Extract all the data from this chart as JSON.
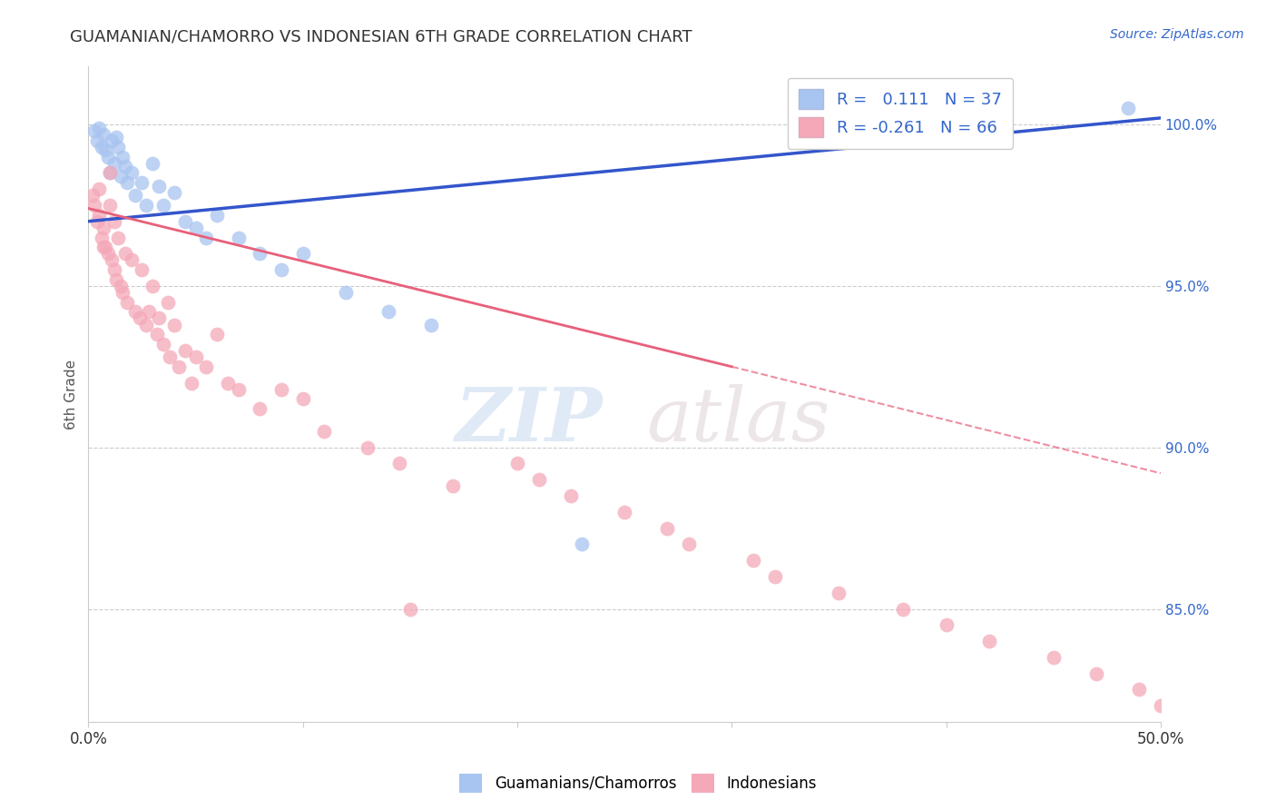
{
  "title": "GUAMANIAN/CHAMORRO VS INDONESIAN 6TH GRADE CORRELATION CHART",
  "source": "Source: ZipAtlas.com",
  "ylabel": "6th Grade",
  "yaxis_labels": [
    "100.0%",
    "95.0%",
    "90.0%",
    "85.0%"
  ],
  "yaxis_values": [
    1.0,
    0.95,
    0.9,
    0.85
  ],
  "xlim": [
    0.0,
    0.5
  ],
  "ylim": [
    0.815,
    1.018
  ],
  "legend_blue_r": "0.111",
  "legend_blue_n": "37",
  "legend_pink_r": "-0.261",
  "legend_pink_n": "66",
  "blue_color": "#a8c4f0",
  "pink_color": "#f4a8b8",
  "blue_line_color": "#3355cc",
  "pink_line_color": "#e8607a",
  "blue_line_x0": 0.0,
  "blue_line_y0": 0.97,
  "blue_line_x1": 0.5,
  "blue_line_y1": 1.002,
  "pink_line_solid_x0": 0.0,
  "pink_line_solid_y0": 0.974,
  "pink_line_solid_x1": 0.3,
  "pink_line_solid_y1": 0.925,
  "pink_line_dash_x0": 0.3,
  "pink_line_dash_y0": 0.925,
  "pink_line_dash_x1": 0.5,
  "pink_line_dash_y1": 0.892,
  "blue_scatter_x": [
    0.003,
    0.004,
    0.005,
    0.006,
    0.007,
    0.008,
    0.009,
    0.01,
    0.011,
    0.012,
    0.013,
    0.014,
    0.015,
    0.016,
    0.017,
    0.018,
    0.02,
    0.022,
    0.025,
    0.027,
    0.03,
    0.033,
    0.035,
    0.04,
    0.045,
    0.05,
    0.055,
    0.06,
    0.07,
    0.08,
    0.09,
    0.1,
    0.12,
    0.14,
    0.16,
    0.23,
    0.485
  ],
  "blue_scatter_y": [
    0.998,
    0.995,
    0.999,
    0.993,
    0.997,
    0.992,
    0.99,
    0.985,
    0.995,
    0.988,
    0.996,
    0.993,
    0.984,
    0.99,
    0.987,
    0.982,
    0.985,
    0.978,
    0.982,
    0.975,
    0.988,
    0.981,
    0.975,
    0.979,
    0.97,
    0.968,
    0.965,
    0.972,
    0.965,
    0.96,
    0.955,
    0.96,
    0.948,
    0.942,
    0.938,
    0.87,
    1.005
  ],
  "pink_scatter_x": [
    0.002,
    0.003,
    0.004,
    0.005,
    0.006,
    0.007,
    0.008,
    0.009,
    0.01,
    0.011,
    0.012,
    0.013,
    0.014,
    0.015,
    0.016,
    0.017,
    0.018,
    0.02,
    0.022,
    0.024,
    0.025,
    0.027,
    0.028,
    0.03,
    0.032,
    0.033,
    0.035,
    0.037,
    0.038,
    0.04,
    0.042,
    0.045,
    0.048,
    0.05,
    0.055,
    0.06,
    0.065,
    0.07,
    0.08,
    0.09,
    0.1,
    0.11,
    0.13,
    0.145,
    0.15,
    0.17,
    0.2,
    0.21,
    0.225,
    0.25,
    0.27,
    0.28,
    0.31,
    0.32,
    0.35,
    0.38,
    0.4,
    0.42,
    0.45,
    0.47,
    0.49,
    0.5,
    0.005,
    0.007,
    0.01,
    0.012
  ],
  "pink_scatter_y": [
    0.978,
    0.975,
    0.97,
    0.972,
    0.965,
    0.968,
    0.962,
    0.96,
    0.975,
    0.958,
    0.955,
    0.952,
    0.965,
    0.95,
    0.948,
    0.96,
    0.945,
    0.958,
    0.942,
    0.94,
    0.955,
    0.938,
    0.942,
    0.95,
    0.935,
    0.94,
    0.932,
    0.945,
    0.928,
    0.938,
    0.925,
    0.93,
    0.92,
    0.928,
    0.925,
    0.935,
    0.92,
    0.918,
    0.912,
    0.918,
    0.915,
    0.905,
    0.9,
    0.895,
    0.85,
    0.888,
    0.895,
    0.89,
    0.885,
    0.88,
    0.875,
    0.87,
    0.865,
    0.86,
    0.855,
    0.85,
    0.845,
    0.84,
    0.835,
    0.83,
    0.825,
    0.82,
    0.98,
    0.962,
    0.985,
    0.97
  ]
}
